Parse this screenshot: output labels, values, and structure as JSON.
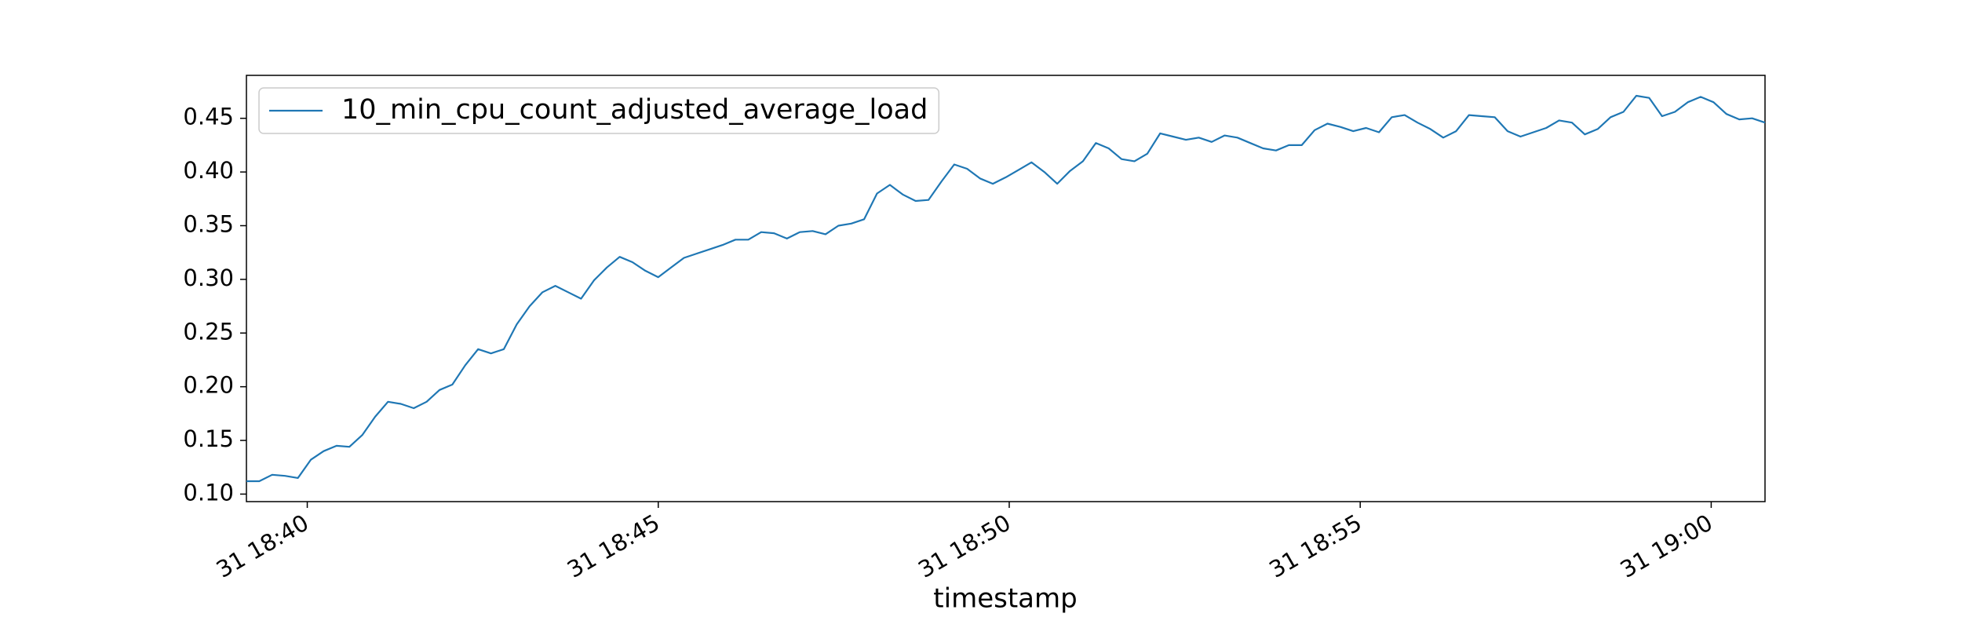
{
  "chart_data": {
    "type": "line",
    "xlabel": "timestamp",
    "x": [
      "31 18:39:08",
      "31 18:39:19",
      "31 18:39:30",
      "31 18:39:41",
      "31 18:39:52",
      "31 18:40:03",
      "31 18:40:14",
      "31 18:40:25",
      "31 18:40:36",
      "31 18:40:47",
      "31 18:40:58",
      "31 18:41:09",
      "31 18:41:20",
      "31 18:41:31",
      "31 18:41:42",
      "31 18:41:53",
      "31 18:42:04",
      "31 18:42:15",
      "31 18:42:26",
      "31 18:42:37",
      "31 18:42:48",
      "31 18:42:59",
      "31 18:43:10",
      "31 18:43:21",
      "31 18:43:32",
      "31 18:43:43",
      "31 18:43:54",
      "31 18:44:05",
      "31 18:44:16",
      "31 18:44:27",
      "31 18:44:38",
      "31 18:44:49",
      "31 18:45:00",
      "31 18:45:11",
      "31 18:45:22",
      "31 18:45:33",
      "31 18:45:44",
      "31 18:45:55",
      "31 18:46:06",
      "31 18:46:17",
      "31 18:46:28",
      "31 18:46:39",
      "31 18:46:50",
      "31 18:47:01",
      "31 18:47:12",
      "31 18:47:23",
      "31 18:47:34",
      "31 18:47:45",
      "31 18:47:56",
      "31 18:48:07",
      "31 18:48:18",
      "31 18:48:29",
      "31 18:48:40",
      "31 18:48:51",
      "31 18:49:02",
      "31 18:49:13",
      "31 18:49:24",
      "31 18:49:35",
      "31 18:49:46",
      "31 18:49:57",
      "31 18:50:08",
      "31 18:50:19",
      "31 18:50:30",
      "31 18:50:41",
      "31 18:50:52",
      "31 18:51:03",
      "31 18:51:14",
      "31 18:51:25",
      "31 18:51:36",
      "31 18:51:47",
      "31 18:51:58",
      "31 18:52:09",
      "31 18:52:20",
      "31 18:52:31",
      "31 18:52:42",
      "31 18:52:53",
      "31 18:53:04",
      "31 18:53:15",
      "31 18:53:26",
      "31 18:53:37",
      "31 18:53:48",
      "31 18:53:59",
      "31 18:54:10",
      "31 18:54:21",
      "31 18:54:32",
      "31 18:54:43",
      "31 18:54:54",
      "31 18:55:05",
      "31 18:55:16",
      "31 18:55:27",
      "31 18:55:38",
      "31 18:55:49",
      "31 18:56:00",
      "31 18:56:11",
      "31 18:56:22",
      "31 18:56:33",
      "31 18:56:44",
      "31 18:56:55",
      "31 18:57:06",
      "31 18:57:17",
      "31 18:57:28",
      "31 18:57:39",
      "31 18:57:50",
      "31 18:58:01",
      "31 18:58:12",
      "31 18:58:23",
      "31 18:58:34",
      "31 18:58:45",
      "31 18:58:56",
      "31 18:59:07",
      "31 18:59:18",
      "31 18:59:29",
      "31 18:59:40",
      "31 18:59:51",
      "31 19:00:02",
      "31 19:00:13",
      "31 19:00:24",
      "31 19:00:35",
      "31 19:00:46"
    ],
    "series": [
      {
        "name": "10_min_cpu_count_adjusted_average_load",
        "color": "#1f77b4",
        "values": [
          0.112,
          0.112,
          0.118,
          0.117,
          0.115,
          0.132,
          0.14,
          0.145,
          0.144,
          0.155,
          0.172,
          0.186,
          0.184,
          0.18,
          0.186,
          0.197,
          0.202,
          0.22,
          0.235,
          0.231,
          0.235,
          0.258,
          0.275,
          0.288,
          0.294,
          0.288,
          0.282,
          0.299,
          0.311,
          0.321,
          0.316,
          0.308,
          0.302,
          0.311,
          0.32,
          0.324,
          0.328,
          0.332,
          0.337,
          0.337,
          0.344,
          0.343,
          0.338,
          0.344,
          0.345,
          0.342,
          0.35,
          0.352,
          0.356,
          0.38,
          0.388,
          0.379,
          0.373,
          0.374,
          0.391,
          0.407,
          0.403,
          0.394,
          0.389,
          0.395,
          0.402,
          0.409,
          0.4,
          0.389,
          0.401,
          0.41,
          0.427,
          0.422,
          0.412,
          0.41,
          0.417,
          0.436,
          0.433,
          0.43,
          0.432,
          0.428,
          0.434,
          0.432,
          0.427,
          0.422,
          0.42,
          0.425,
          0.425,
          0.439,
          0.445,
          0.442,
          0.438,
          0.441,
          0.437,
          0.451,
          0.453,
          0.446,
          0.44,
          0.432,
          0.438,
          0.453,
          0.452,
          0.451,
          0.438,
          0.433,
          0.437,
          0.441,
          0.448,
          0.446,
          0.435,
          0.44,
          0.451,
          0.456,
          0.471,
          0.469,
          0.452,
          0.456,
          0.465,
          0.47,
          0.465,
          0.454,
          0.449,
          0.45,
          0.446
        ]
      }
    ],
    "xlim": [
      "31 18:39:08",
      "31 19:00:46"
    ],
    "xticks": [
      "31 18:40",
      "31 18:45",
      "31 18:50",
      "31 18:55",
      "31 19:00"
    ],
    "ylim": [
      0.093,
      0.49
    ],
    "yticks": [
      {
        "value": 0.1,
        "label": "0.10"
      },
      0.15,
      {
        "value": 0.2,
        "label": "0.20"
      },
      0.25,
      {
        "value": 0.3,
        "label": "0.30"
      },
      0.35,
      {
        "value": 0.4,
        "label": "0.40"
      },
      0.45
    ],
    "legend": "upper left"
  }
}
